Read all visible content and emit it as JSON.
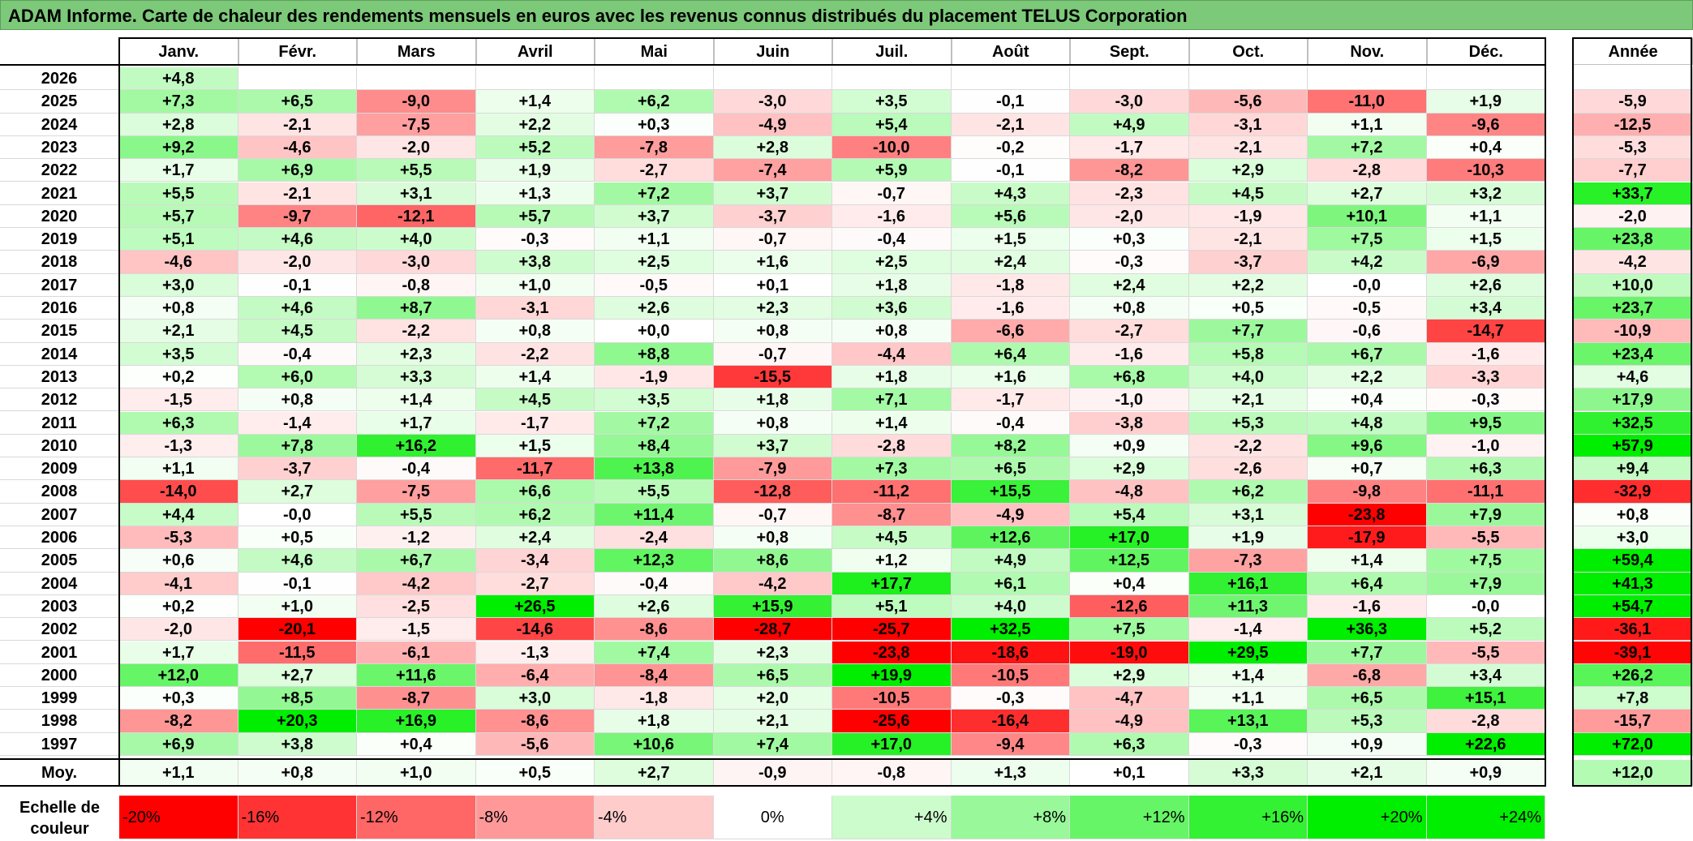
{
  "title": "ADAM Informe. Carte de chaleur des rendements mensuels en euros avec les revenus connus distribués du placement TELUS Corporation",
  "months": [
    "Janv.",
    "Févr.",
    "Mars",
    "Avril",
    "Mai",
    "Juin",
    "Juil.",
    "Août",
    "Sept.",
    "Oct.",
    "Nov.",
    "Déc."
  ],
  "annual_header": "Année",
  "avg_label": "Moy.",
  "scale_label_line1": "Echelle de",
  "scale_label_line2": "couleur",
  "scale": [
    {
      "label": "-20%",
      "value": -20
    },
    {
      "label": "-16%",
      "value": -16
    },
    {
      "label": "-12%",
      "value": -12
    },
    {
      "label": "-8%",
      "value": -8
    },
    {
      "label": "-4%",
      "value": -4
    },
    {
      "label": "0%",
      "value": 0
    },
    {
      "label": "+4%",
      "value": 4
    },
    {
      "label": "+8%",
      "value": 8
    },
    {
      "label": "+12%",
      "value": 12
    },
    {
      "label": "+16%",
      "value": 16
    },
    {
      "label": "+20%",
      "value": 20
    },
    {
      "label": "+24%",
      "value": 24
    }
  ],
  "colors": {
    "negative_max": "#ff0000",
    "positive_max": "#00ee00",
    "neutral": "#ffffff",
    "title_bar": "#7dc97a"
  },
  "chart_data": {
    "type": "heatmap",
    "title": "ADAM Informe. Carte de chaleur des rendements mensuels en euros avec les revenus connus distribués du placement TELUS Corporation",
    "columns": [
      "Janv.",
      "Févr.",
      "Mars",
      "Avril",
      "Mai",
      "Juin",
      "Juil.",
      "Août",
      "Sept.",
      "Oct.",
      "Nov.",
      "Déc."
    ],
    "rows": [
      {
        "year": "2026",
        "months": [
          "+4,8",
          "",
          "",
          "",
          "",
          "",
          "",
          "",
          "",
          "",
          "",
          ""
        ],
        "annual": ""
      },
      {
        "year": "2025",
        "months": [
          "+7,3",
          "+6,5",
          "-9,0",
          "+1,4",
          "+6,2",
          "-3,0",
          "+3,5",
          "-0,1",
          "-3,0",
          "-5,6",
          "-11,0",
          "+1,9"
        ],
        "annual": "-5,9"
      },
      {
        "year": "2024",
        "months": [
          "+2,8",
          "-2,1",
          "-7,5",
          "+2,2",
          "+0,3",
          "-4,9",
          "+5,4",
          "-2,1",
          "+4,9",
          "-3,1",
          "+1,1",
          "-9,6"
        ],
        "annual": "-12,5"
      },
      {
        "year": "2023",
        "months": [
          "+9,2",
          "-4,6",
          "-2,0",
          "+5,2",
          "-7,8",
          "+2,8",
          "-10,0",
          "-0,2",
          "-1,7",
          "-2,1",
          "+7,2",
          "+0,4"
        ],
        "annual": "-5,3"
      },
      {
        "year": "2022",
        "months": [
          "+1,7",
          "+6,9",
          "+5,5",
          "+1,9",
          "-2,7",
          "-7,4",
          "+5,9",
          "-0,1",
          "-8,2",
          "+2,9",
          "-2,8",
          "-10,3"
        ],
        "annual": "-7,7"
      },
      {
        "year": "2021",
        "months": [
          "+5,5",
          "-2,1",
          "+3,1",
          "+1,3",
          "+7,2",
          "+3,7",
          "-0,7",
          "+4,3",
          "-2,3",
          "+4,5",
          "+2,7",
          "+3,2"
        ],
        "annual": "+33,7"
      },
      {
        "year": "2020",
        "months": [
          "+5,7",
          "-9,7",
          "-12,1",
          "+5,7",
          "+3,7",
          "-3,7",
          "-1,6",
          "+5,6",
          "-2,0",
          "-1,9",
          "+10,1",
          "+1,1"
        ],
        "annual": "-2,0"
      },
      {
        "year": "2019",
        "months": [
          "+5,1",
          "+4,6",
          "+4,0",
          "-0,3",
          "+1,1",
          "-0,7",
          "-0,4",
          "+1,5",
          "+0,3",
          "-2,1",
          "+7,5",
          "+1,5"
        ],
        "annual": "+23,8"
      },
      {
        "year": "2018",
        "months": [
          "-4,6",
          "-2,0",
          "-3,0",
          "+3,8",
          "+2,5",
          "+1,6",
          "+2,5",
          "+2,4",
          "-0,3",
          "-3,7",
          "+4,2",
          "-6,9"
        ],
        "annual": "-4,2"
      },
      {
        "year": "2017",
        "months": [
          "+3,0",
          "-0,1",
          "-0,8",
          "+1,0",
          "-0,5",
          "+0,1",
          "+1,8",
          "-1,8",
          "+2,4",
          "+2,2",
          "-0,0",
          "+2,6"
        ],
        "annual": "+10,0"
      },
      {
        "year": "2016",
        "months": [
          "+0,8",
          "+4,6",
          "+8,7",
          "-3,1",
          "+2,6",
          "+2,3",
          "+3,6",
          "-1,6",
          "+0,8",
          "+0,5",
          "-0,5",
          "+3,4"
        ],
        "annual": "+23,7"
      },
      {
        "year": "2015",
        "months": [
          "+2,1",
          "+4,5",
          "-2,2",
          "+0,8",
          "+0,0",
          "+0,8",
          "+0,8",
          "-6,6",
          "-2,7",
          "+7,7",
          "-0,6",
          "-14,7"
        ],
        "annual": "-10,9"
      },
      {
        "year": "2014",
        "months": [
          "+3,5",
          "-0,4",
          "+2,3",
          "-2,2",
          "+8,8",
          "-0,7",
          "-4,4",
          "+6,4",
          "-1,6",
          "+5,8",
          "+6,7",
          "-1,6"
        ],
        "annual": "+23,4"
      },
      {
        "year": "2013",
        "months": [
          "+0,2",
          "+6,0",
          "+3,3",
          "+1,4",
          "-1,9",
          "-15,5",
          "+1,8",
          "+1,6",
          "+6,8",
          "+4,0",
          "+2,2",
          "-3,3"
        ],
        "annual": "+4,6"
      },
      {
        "year": "2012",
        "months": [
          "-1,5",
          "+0,8",
          "+1,4",
          "+4,5",
          "+3,5",
          "+1,8",
          "+7,1",
          "-1,7",
          "-1,0",
          "+2,1",
          "+0,4",
          "-0,3"
        ],
        "annual": "+17,9"
      },
      {
        "year": "2011",
        "months": [
          "+6,3",
          "-1,4",
          "+1,7",
          "-1,7",
          "+7,2",
          "+0,8",
          "+1,4",
          "-0,4",
          "-3,8",
          "+5,3",
          "+4,8",
          "+9,5"
        ],
        "annual": "+32,5"
      },
      {
        "year": "2010",
        "months": [
          "-1,3",
          "+7,8",
          "+16,2",
          "+1,5",
          "+8,4",
          "+3,7",
          "-2,8",
          "+8,2",
          "+0,9",
          "-2,2",
          "+9,6",
          "-1,0"
        ],
        "annual": "+57,9"
      },
      {
        "year": "2009",
        "months": [
          "+1,1",
          "-3,7",
          "-0,4",
          "-11,7",
          "+13,8",
          "-7,9",
          "+7,3",
          "+6,5",
          "+2,9",
          "-2,6",
          "+0,7",
          "+6,3"
        ],
        "annual": "+9,4"
      },
      {
        "year": "2008",
        "months": [
          "-14,0",
          "+2,7",
          "-7,5",
          "+6,6",
          "+5,5",
          "-12,8",
          "-11,2",
          "+15,5",
          "-4,8",
          "+6,2",
          "-9,8",
          "-11,1"
        ],
        "annual": "-32,9"
      },
      {
        "year": "2007",
        "months": [
          "+4,4",
          "-0,0",
          "+5,5",
          "+6,2",
          "+11,4",
          "-0,7",
          "-8,7",
          "-4,9",
          "+5,4",
          "+3,1",
          "-23,8",
          "+7,9"
        ],
        "annual": "+0,8"
      },
      {
        "year": "2006",
        "months": [
          "-5,3",
          "+0,5",
          "-1,2",
          "+2,4",
          "-2,4",
          "+0,8",
          "+4,5",
          "+12,6",
          "+17,0",
          "+1,9",
          "-17,9",
          "-5,5"
        ],
        "annual": "+3,0"
      },
      {
        "year": "2005",
        "months": [
          "+0,6",
          "+4,6",
          "+6,7",
          "-3,4",
          "+12,3",
          "+8,6",
          "+1,2",
          "+4,9",
          "+12,5",
          "-7,3",
          "+1,4",
          "+7,5"
        ],
        "annual": "+59,4"
      },
      {
        "year": "2004",
        "months": [
          "-4,1",
          "-0,1",
          "-4,2",
          "-2,7",
          "-0,4",
          "-4,2",
          "+17,7",
          "+6,1",
          "+0,4",
          "+16,1",
          "+6,4",
          "+7,9"
        ],
        "annual": "+41,3"
      },
      {
        "year": "2003",
        "months": [
          "+0,2",
          "+1,0",
          "-2,5",
          "+26,5",
          "+2,6",
          "+15,9",
          "+5,1",
          "+4,0",
          "-12,6",
          "+11,3",
          "-1,6",
          "-0,0"
        ],
        "annual": "+54,7"
      },
      {
        "year": "2002",
        "months": [
          "-2,0",
          "-20,1",
          "-1,5",
          "-14,6",
          "-8,6",
          "-28,7",
          "-25,7",
          "+32,5",
          "+7,5",
          "-1,4",
          "+36,3",
          "+5,2"
        ],
        "annual": "-36,1"
      },
      {
        "year": "2001",
        "months": [
          "+1,7",
          "-11,5",
          "-6,1",
          "-1,3",
          "+7,4",
          "+2,3",
          "-23,8",
          "-18,6",
          "-19,0",
          "+29,5",
          "+7,7",
          "-5,5"
        ],
        "annual": "-39,1"
      },
      {
        "year": "2000",
        "months": [
          "+12,0",
          "+2,7",
          "+11,6",
          "-6,4",
          "-8,4",
          "+6,5",
          "+19,9",
          "-10,5",
          "+2,9",
          "+1,4",
          "-6,8",
          "+3,4"
        ],
        "annual": "+26,2"
      },
      {
        "year": "1999",
        "months": [
          "+0,3",
          "+8,5",
          "-8,7",
          "+3,0",
          "-1,8",
          "+2,0",
          "-10,5",
          "-0,3",
          "-4,7",
          "+1,1",
          "+6,5",
          "+15,1"
        ],
        "annual": "+7,8"
      },
      {
        "year": "1998",
        "months": [
          "-8,2",
          "+20,3",
          "+16,9",
          "-8,6",
          "+1,8",
          "+2,1",
          "-25,6",
          "-16,4",
          "-4,9",
          "+13,1",
          "+5,3",
          "-2,8"
        ],
        "annual": "-15,7"
      },
      {
        "year": "1997",
        "months": [
          "+6,9",
          "+3,8",
          "+0,4",
          "-5,6",
          "+10,6",
          "+7,4",
          "+17,0",
          "-9,4",
          "+6,3",
          "-0,3",
          "+0,9",
          "+22,6"
        ],
        "annual": "+72,0"
      }
    ],
    "average": {
      "months": [
        "+1,1",
        "+0,8",
        "+1,0",
        "+0,5",
        "+2,7",
        "-0,9",
        "-0,8",
        "+1,3",
        "+0,1",
        "+3,3",
        "+2,1",
        "+0,9"
      ],
      "annual": "+12,0"
    }
  }
}
